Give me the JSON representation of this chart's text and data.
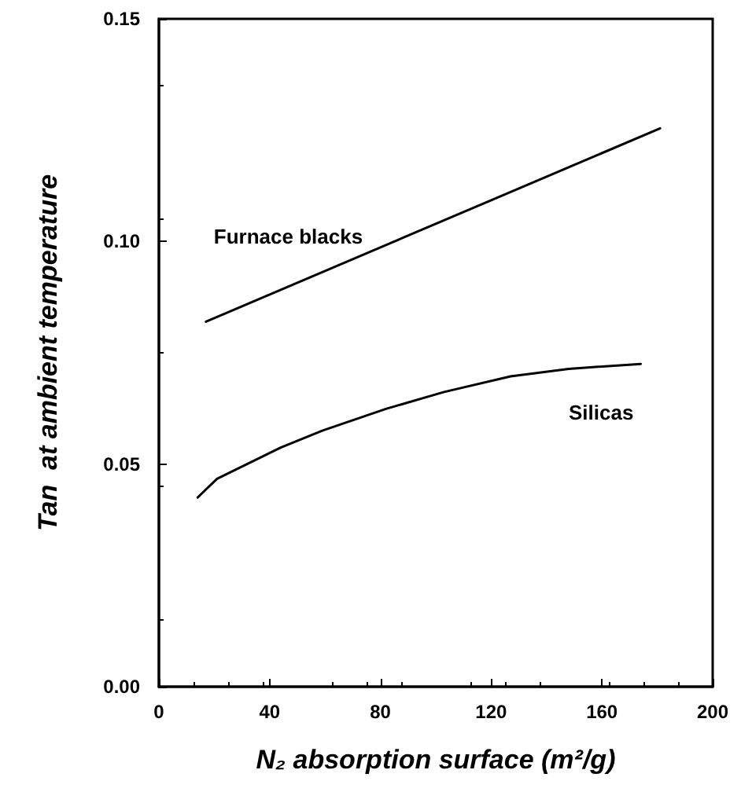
{
  "chart_data": {
    "type": "line",
    "xlabel": "N₂ absorption surface (m²/g)",
    "ylabel": "Tan  at ambient temperature",
    "series": [
      {
        "name": "Furnace blacks",
        "color": "#000000",
        "x": [
          17,
          181
        ],
        "values": [
          0.082,
          0.1254
        ]
      },
      {
        "name": "Silicas",
        "color": "#000000",
        "x": [
          14,
          21,
          44,
          59,
          82,
          103,
          127,
          148,
          174
        ],
        "values": [
          0.0425,
          0.0467,
          0.0537,
          0.0575,
          0.0624,
          0.0662,
          0.0697,
          0.0714,
          0.0725
        ]
      }
    ],
    "xlim": [
      0,
      200
    ],
    "xticks": [
      0,
      40,
      80,
      120,
      160,
      200
    ],
    "ylim": [
      0,
      0.15
    ],
    "yticks": [
      {
        "value": 0,
        "label": "0.00"
      },
      {
        "value": 0.05,
        "label": "0.05"
      },
      {
        "value": 0.1,
        "label": "0.10"
      },
      {
        "value": 0.15,
        "label": "0.15"
      }
    ],
    "grid": false,
    "marker": "none",
    "line_style": "solid"
  }
}
